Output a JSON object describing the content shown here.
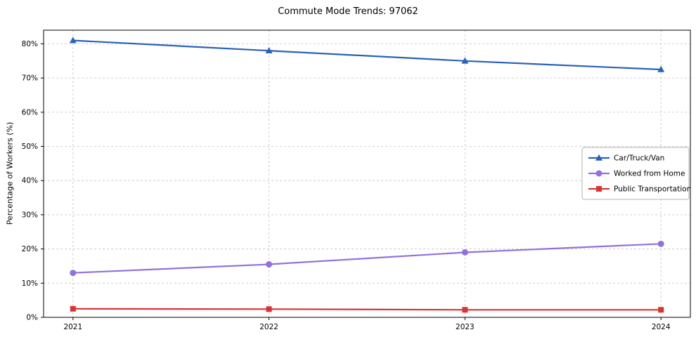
{
  "chart_data": {
    "type": "line",
    "title": "Commute Mode Trends: 97062",
    "xlabel": "",
    "ylabel": "Percentage of Workers (%)",
    "x": [
      2021,
      2022,
      2023,
      2024
    ],
    "series": [
      {
        "name": "Car/Truck/Van",
        "values": [
          81,
          78,
          75,
          72.5
        ],
        "color": "#2a62b9",
        "marker": "triangle"
      },
      {
        "name": "Worked from Home",
        "values": [
          13,
          15.5,
          19,
          21.5
        ],
        "color": "#9370db",
        "marker": "circle"
      },
      {
        "name": "Public Transportation",
        "values": [
          2.5,
          2.4,
          2.2,
          2.2
        ],
        "color": "#d93434",
        "marker": "square"
      }
    ],
    "ylim": [
      0,
      84
    ],
    "yticks": [
      0,
      10,
      20,
      30,
      40,
      50,
      60,
      70,
      80
    ],
    "ytick_labels": [
      "0%",
      "10%",
      "20%",
      "30%",
      "40%",
      "50%",
      "60%",
      "70%",
      "80%"
    ],
    "xtick_labels": [
      "2021",
      "2022",
      "2023",
      "2024"
    ],
    "grid": true,
    "grid_style": "dashed",
    "legend_position": "center-right",
    "colors": {
      "axis": "#000000",
      "grid": "#c9c9c9",
      "legend_border": "#b3b3b3",
      "background": "#ffffff"
    }
  }
}
